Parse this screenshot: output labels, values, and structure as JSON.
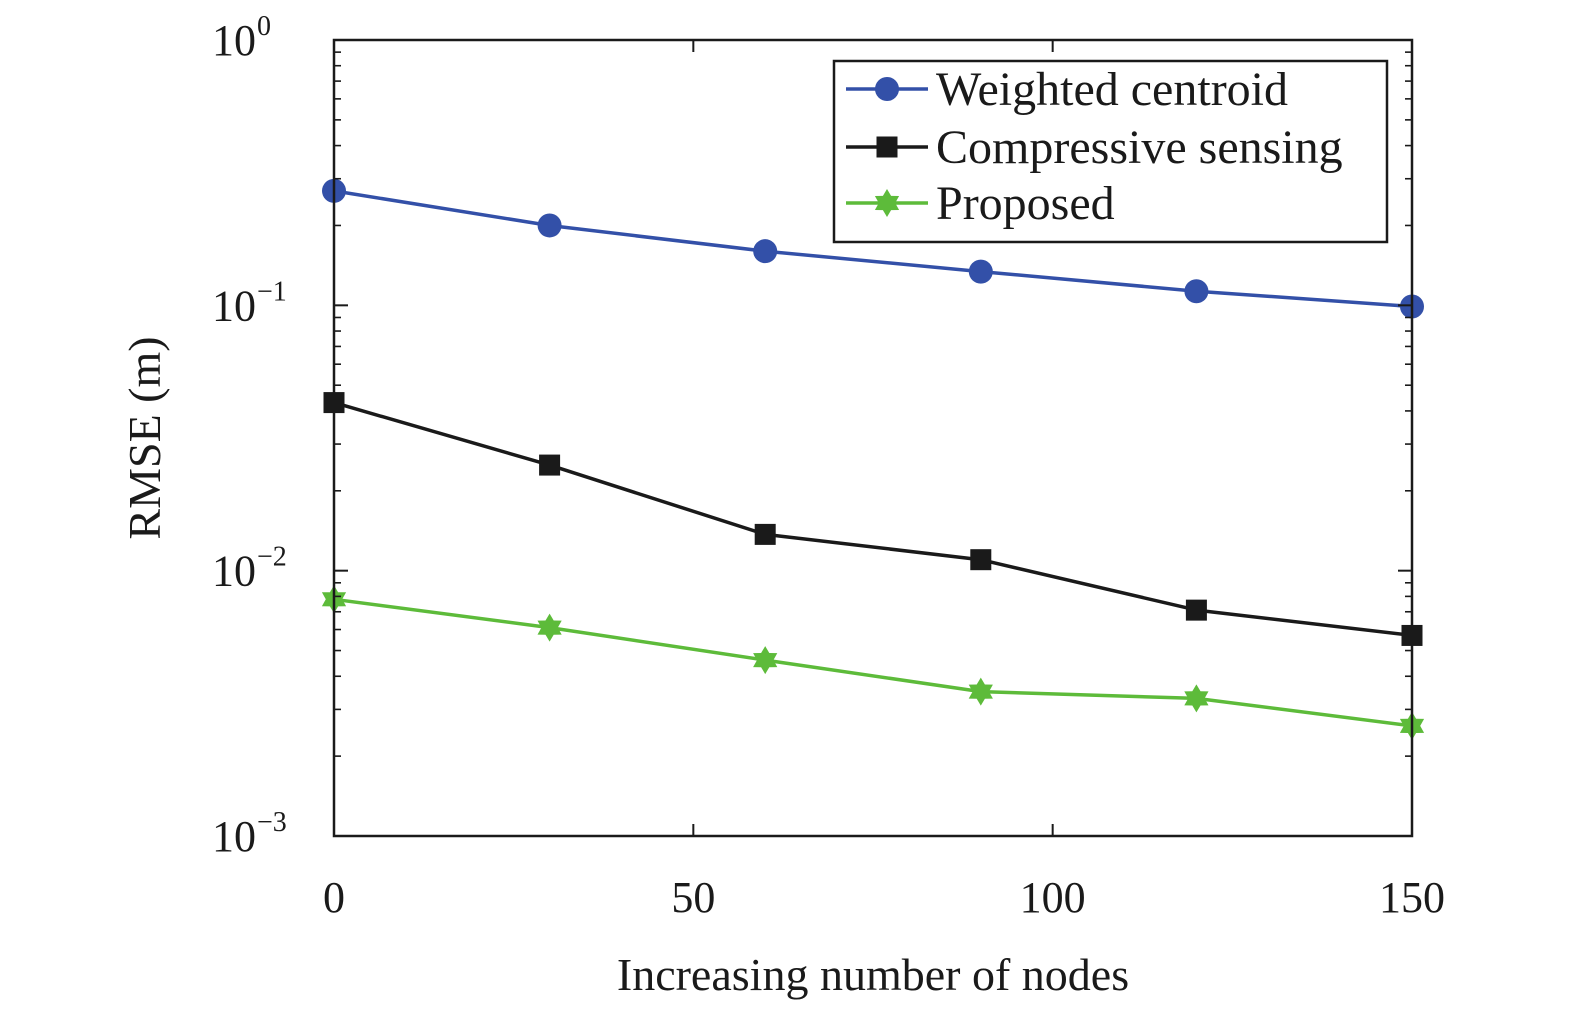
{
  "chart_data": {
    "type": "line",
    "xlabel": "Increasing number of nodes",
    "ylabel": "RMSE (m)",
    "xlim": [
      0,
      150
    ],
    "ylim": [
      0.001,
      1
    ],
    "yscale": "log",
    "x_ticks": [
      "0",
      "50",
      "100",
      "150"
    ],
    "y_ticks": [
      {
        "base": "10",
        "exp": "0"
      },
      {
        "base": "10",
        "exp": "−1"
      },
      {
        "base": "10",
        "exp": "−2"
      },
      {
        "base": "10",
        "exp": "−3"
      }
    ],
    "grid": false,
    "legend_position": "top-right",
    "x": [
      0,
      30,
      60,
      90,
      120,
      150
    ],
    "series": [
      {
        "name": "Weighted centroid",
        "color": "#3350A8",
        "marker": "circle",
        "values": [
          0.27,
          0.2,
          0.16,
          0.134,
          0.113,
          0.099
        ]
      },
      {
        "name": "Compressive sensing",
        "color": "#1a1a1a",
        "marker": "square",
        "values": [
          0.043,
          0.025,
          0.0137,
          0.011,
          0.0071,
          0.0057
        ]
      },
      {
        "name": "Proposed",
        "color": "#5DBB3A",
        "marker": "star",
        "values": [
          0.0078,
          0.0061,
          0.0046,
          0.0035,
          0.0033,
          0.0026
        ]
      }
    ]
  }
}
